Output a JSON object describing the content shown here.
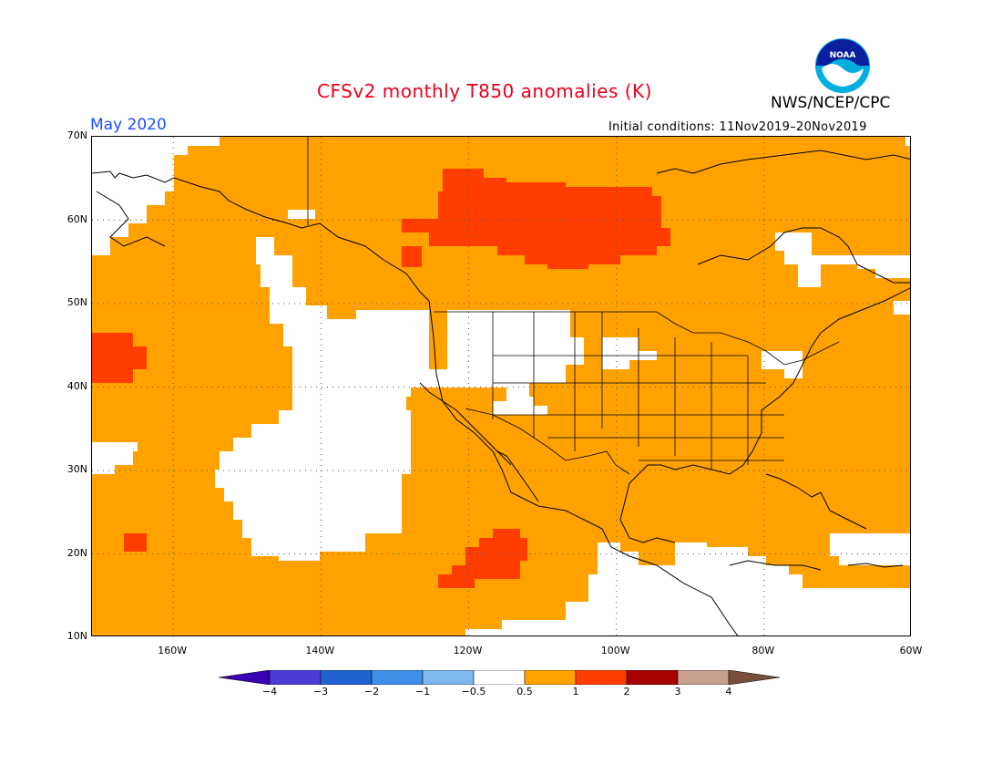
{
  "header": {
    "title": "CFSv2 monthly T850 anomalies (K)",
    "org": "NWS/NCEP/CPC",
    "month": "May 2020",
    "initial_conditions": "Initial conditions: 11Nov2019–20Nov2019",
    "logo_text": "NOAA"
  },
  "map": {
    "lon_range": [
      -171,
      -60
    ],
    "lat_range": [
      10,
      70
    ],
    "lat_labels": [
      "70N",
      "60N",
      "50N",
      "40N",
      "30N",
      "20N",
      "10N"
    ],
    "lon_labels": [
      "160W",
      "140W",
      "120W",
      "100W",
      "80W",
      "60W"
    ],
    "grid": "dotted",
    "colors": {
      "land_outline": "#000000",
      "white_neutral": "#ffffff",
      "orange_0_5_to_1": "#ffa200",
      "red_1_to_2": "#ff3d00"
    }
  },
  "colorbar": {
    "labels": [
      "-4",
      "-3",
      "-2",
      "-1",
      "-0.5",
      "0.5",
      "1",
      "2",
      "3",
      "4"
    ],
    "colors": [
      "#3a00b4",
      "#4b3cd6",
      "#1f63d0",
      "#3f8ee8",
      "#7fb8ee",
      "#ffffff",
      "#ffa200",
      "#ff3d00",
      "#a80000",
      "#c8a090",
      "#784f3c"
    ]
  }
}
